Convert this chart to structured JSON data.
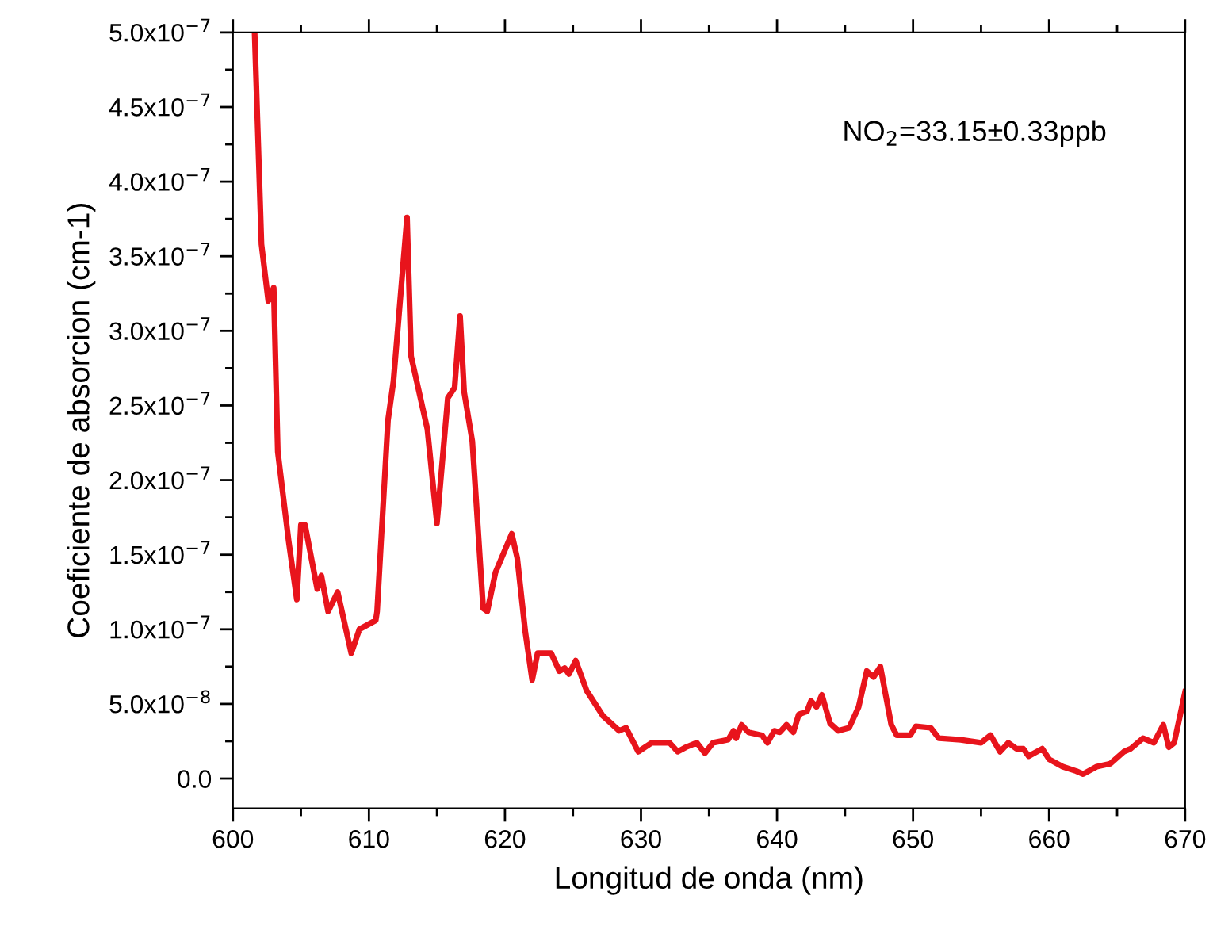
{
  "chart_data": {
    "type": "line",
    "xlabel": "Longitud de onda (nm)",
    "ylabel": "Coeficiente de absorcion (cm-1)",
    "annotations": [
      "NO$_{2}$=33.15±0.33ppb"
    ],
    "x": [
      601.6,
      602.1,
      602.6,
      603.0,
      603.3,
      604.1,
      604.7,
      605.0,
      605.3,
      606.2,
      606.5,
      607.0,
      607.7,
      608.7,
      609.3,
      610.5,
      610.6,
      611.4,
      611.8,
      612.8,
      613.1,
      614.3,
      615.0,
      615.8,
      616.3,
      616.7,
      617.0,
      617.6,
      618.4,
      618.7,
      619.3,
      620.5,
      620.9,
      621.5,
      622.0,
      622.4,
      623.4,
      624.0,
      624.4,
      624.7,
      625.2,
      626.0,
      627.2,
      628.4,
      628.9,
      629.8,
      630.8,
      632.1,
      632.7,
      633.3,
      634.1,
      634.7,
      635.3,
      636.4,
      636.8,
      637.0,
      637.4,
      637.9,
      638.9,
      639.3,
      639.8,
      640.2,
      640.7,
      641.2,
      641.6,
      642.2,
      642.5,
      642.9,
      643.3,
      643.9,
      644.5,
      645.3,
      646.0,
      646.6,
      647.1,
      647.6,
      648.4,
      648.8,
      649.8,
      650.2,
      651.3,
      651.9,
      653.5,
      655.0,
      655.7,
      656.4,
      657.0,
      657.6,
      658.1,
      658.5,
      659.5,
      660.0,
      661.0,
      662.0,
      662.5,
      663.5,
      664.5,
      665.5,
      666.0,
      666.9,
      667.7,
      668.4,
      668.8,
      669.2,
      670.0
    ],
    "series": [
      {
        "color": "#e8141c",
        "values": [
          4.99e-07,
          3.58e-07,
          3.2e-07,
          3.29e-07,
          2.19e-07,
          1.59e-07,
          1.2e-07,
          1.7e-07,
          1.7e-07,
          1.27e-07,
          1.36e-07,
          1.12e-07,
          1.25e-07,
          8.4e-08,
          1e-07,
          1.06e-07,
          1.12e-07,
          2.4e-07,
          2.66e-07,
          3.76e-07,
          2.83e-07,
          2.34e-07,
          1.71e-07,
          2.55e-07,
          2.62e-07,
          3.1e-07,
          2.59e-07,
          2.26e-07,
          1.14e-07,
          1.12e-07,
          1.38e-07,
          1.64e-07,
          1.48e-07,
          9.8e-08,
          6.6e-08,
          8.4e-08,
          8.4e-08,
          7.2e-08,
          7.4e-08,
          7e-08,
          7.9e-08,
          5.9e-08,
          4.2e-08,
          3.2e-08,
          3.4e-08,
          1.8e-08,
          2.4e-08,
          2.4e-08,
          1.8e-08,
          2.1e-08,
          2.4e-08,
          1.7e-08,
          2.4e-08,
          2.6e-08,
          3.2e-08,
          2.7e-08,
          3.6e-08,
          3.1e-08,
          2.9e-08,
          2.4e-08,
          3.2e-08,
          3.1e-08,
          3.6e-08,
          3.1e-08,
          4.3e-08,
          4.5e-08,
          5.2e-08,
          4.8e-08,
          5.6e-08,
          3.7e-08,
          3.2e-08,
          3.4e-08,
          4.8e-08,
          7.2e-08,
          6.8e-08,
          7.5e-08,
          3.6e-08,
          2.9e-08,
          2.9e-08,
          3.5e-08,
          3.4e-08,
          2.7e-08,
          2.6e-08,
          2.4e-08,
          2.9e-08,
          1.8e-08,
          2.4e-08,
          2e-08,
          2e-08,
          1.5e-08,
          2e-08,
          1.3e-08,
          8e-09,
          5e-09,
          3e-09,
          8e-09,
          1e-08,
          1.8e-08,
          2e-08,
          2.7e-08,
          2.4e-08,
          3.6e-08,
          2.1e-08,
          2.4e-08,
          5.8e-08
        ]
      }
    ],
    "xlim": [
      600,
      670
    ],
    "xticks": [
      600,
      610,
      620,
      630,
      640,
      650,
      660,
      670
    ],
    "ylim": [
      -2e-08,
      5e-07
    ],
    "yticks": [
      {
        "value": 0,
        "label": "0.0"
      },
      {
        "value": 5e-08,
        "label": "5.0x10$^{−8}$"
      },
      {
        "value": 1e-07,
        "label": "1.0x10$^{−7}$"
      },
      {
        "value": 1.5e-07,
        "label": "1.5x10$^{−7}$"
      },
      {
        "value": 2e-07,
        "label": "2.0x10$^{−7}$"
      },
      {
        "value": 2.5e-07,
        "label": "2.5x10$^{−7}$"
      },
      {
        "value": 3e-07,
        "label": "3.0x10$^{−7}$"
      },
      {
        "value": 3.5e-07,
        "label": "3.5x10$^{−7}$"
      },
      {
        "value": 4e-07,
        "label": "4.0x10$^{−7}$"
      },
      {
        "value": 4.5e-07,
        "label": "4.5x10$^{−7}$"
      },
      {
        "value": 5e-07,
        "label": "5.0x10$^{−7}$"
      }
    ],
    "grid": false,
    "legend": false,
    "marker": "none",
    "line_style": "solid"
  }
}
